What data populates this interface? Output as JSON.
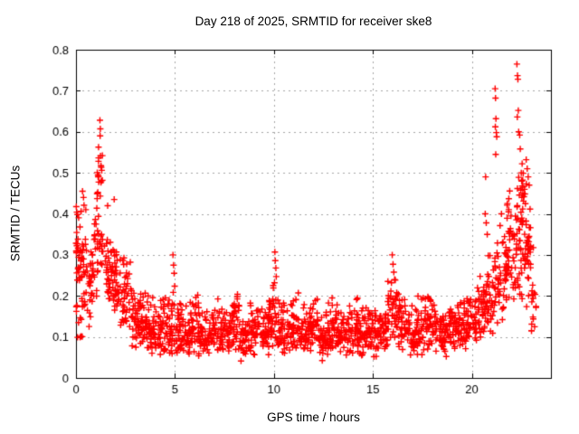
{
  "chart_data": {
    "type": "scatter",
    "title": "Day 218 of 2025, SRMTID for receiver ske8",
    "xlabel": "GPS time / hours",
    "ylabel": "SRMTID / TECUs",
    "xlim": [
      0,
      24
    ],
    "ylim": [
      0,
      0.8
    ],
    "xticks": [
      [
        0,
        "0"
      ],
      [
        5,
        "5"
      ],
      [
        10,
        "10"
      ],
      [
        15,
        "15"
      ],
      [
        20,
        "20"
      ]
    ],
    "yticks": [
      [
        0,
        "0"
      ],
      [
        0.1,
        "0.1"
      ],
      [
        0.2,
        "0.2"
      ],
      [
        0.3,
        "0.3"
      ],
      [
        0.4,
        "0.4"
      ],
      [
        0.5,
        "0.5"
      ],
      [
        0.6,
        "0.6"
      ],
      [
        0.7,
        "0.7"
      ],
      [
        0.8,
        "0.8"
      ]
    ],
    "grid": {
      "on": true,
      "style": "dashed",
      "color": "#a6a6a6"
    },
    "border_color": "#000000",
    "background": "#ffffff",
    "marker": {
      "shape": "plus",
      "color": "#ff0000",
      "size": 7,
      "stroke_width": 1.4
    },
    "legend": null,
    "seed": 218,
    "point_bins": [
      [
        0.0,
        0.25,
        30,
        0.14,
        0.33,
        0.43
      ],
      [
        0.0,
        0.35,
        10,
        0.07,
        0.12,
        0.2
      ],
      [
        0.25,
        0.55,
        28,
        0.15,
        0.28,
        0.46
      ],
      [
        0.55,
        0.9,
        30,
        0.12,
        0.22,
        0.35
      ],
      [
        0.9,
        1.15,
        22,
        0.18,
        0.32,
        0.47
      ],
      [
        1.05,
        1.35,
        20,
        0.4,
        0.51,
        0.57
      ],
      [
        1.15,
        1.45,
        12,
        0.25,
        0.33,
        0.4
      ],
      [
        1.45,
        1.8,
        30,
        0.16,
        0.26,
        0.38
      ],
      [
        1.8,
        2.25,
        40,
        0.13,
        0.22,
        0.34
      ],
      [
        2.25,
        2.75,
        40,
        0.1,
        0.17,
        0.3
      ],
      [
        2.75,
        3.25,
        45,
        0.06,
        0.13,
        0.24
      ],
      [
        3.25,
        3.75,
        45,
        0.05,
        0.105,
        0.21
      ],
      [
        3.75,
        4.25,
        45,
        0.045,
        0.1,
        0.2
      ],
      [
        4.25,
        4.75,
        45,
        0.05,
        0.11,
        0.22
      ],
      [
        4.75,
        5.25,
        45,
        0.05,
        0.11,
        0.24
      ],
      [
        5.25,
        5.75,
        40,
        0.05,
        0.1,
        0.2
      ],
      [
        5.75,
        6.25,
        40,
        0.05,
        0.12,
        0.22
      ],
      [
        6.25,
        6.75,
        40,
        0.04,
        0.09,
        0.17
      ],
      [
        6.75,
        7.25,
        40,
        0.05,
        0.11,
        0.21
      ],
      [
        7.25,
        7.75,
        40,
        0.05,
        0.1,
        0.18
      ],
      [
        7.75,
        8.25,
        40,
        0.05,
        0.12,
        0.22
      ],
      [
        8.25,
        8.75,
        40,
        0.04,
        0.09,
        0.16
      ],
      [
        8.75,
        9.25,
        40,
        0.05,
        0.11,
        0.2
      ],
      [
        9.25,
        9.75,
        40,
        0.05,
        0.1,
        0.18
      ],
      [
        9.75,
        10.25,
        40,
        0.06,
        0.13,
        0.23
      ],
      [
        10.25,
        10.75,
        40,
        0.05,
        0.11,
        0.21
      ],
      [
        10.75,
        11.25,
        40,
        0.06,
        0.12,
        0.22
      ],
      [
        11.25,
        11.75,
        40,
        0.05,
        0.1,
        0.18
      ],
      [
        11.75,
        12.25,
        40,
        0.05,
        0.11,
        0.2
      ],
      [
        12.25,
        12.75,
        40,
        0.04,
        0.09,
        0.17
      ],
      [
        12.75,
        13.25,
        40,
        0.05,
        0.11,
        0.21
      ],
      [
        13.25,
        13.75,
        40,
        0.05,
        0.1,
        0.19
      ],
      [
        13.75,
        14.25,
        40,
        0.05,
        0.11,
        0.2
      ],
      [
        14.25,
        14.75,
        40,
        0.05,
        0.1,
        0.18
      ],
      [
        14.75,
        15.25,
        40,
        0.05,
        0.11,
        0.2
      ],
      [
        15.25,
        15.75,
        40,
        0.05,
        0.11,
        0.21
      ],
      [
        15.75,
        16.25,
        40,
        0.07,
        0.14,
        0.26
      ],
      [
        16.25,
        16.75,
        40,
        0.06,
        0.12,
        0.22
      ],
      [
        16.75,
        17.25,
        40,
        0.05,
        0.1,
        0.19
      ],
      [
        17.25,
        17.75,
        40,
        0.05,
        0.11,
        0.21
      ],
      [
        17.75,
        18.25,
        40,
        0.06,
        0.12,
        0.22
      ],
      [
        18.25,
        18.75,
        40,
        0.05,
        0.1,
        0.18
      ],
      [
        18.75,
        19.25,
        40,
        0.06,
        0.11,
        0.2
      ],
      [
        19.25,
        19.75,
        40,
        0.06,
        0.12,
        0.21
      ],
      [
        19.75,
        20.25,
        40,
        0.07,
        0.13,
        0.23
      ],
      [
        20.25,
        20.75,
        40,
        0.08,
        0.15,
        0.28
      ],
      [
        20.75,
        21.25,
        40,
        0.1,
        0.18,
        0.35
      ],
      [
        21.25,
        21.75,
        40,
        0.12,
        0.22,
        0.42
      ],
      [
        21.75,
        22.25,
        42,
        0.14,
        0.27,
        0.48
      ],
      [
        22.25,
        22.65,
        45,
        0.18,
        0.35,
        0.55
      ],
      [
        22.65,
        23.0,
        40,
        0.15,
        0.28,
        0.5
      ],
      [
        23.0,
        23.25,
        16,
        0.1,
        0.2,
        0.38
      ]
    ],
    "outlier_points": [
      [
        0.33,
        0.455
      ],
      [
        0.38,
        0.44
      ],
      [
        1.21,
        0.628
      ],
      [
        1.23,
        0.607
      ],
      [
        1.22,
        0.59
      ],
      [
        1.6,
        0.42
      ],
      [
        1.93,
        0.435
      ],
      [
        4.9,
        0.3
      ],
      [
        4.93,
        0.275
      ],
      [
        4.96,
        0.255
      ],
      [
        10.05,
        0.307
      ],
      [
        10.07,
        0.286
      ],
      [
        10.1,
        0.268
      ],
      [
        10.12,
        0.247
      ],
      [
        10.03,
        0.232
      ],
      [
        15.98,
        0.3
      ],
      [
        16.02,
        0.277
      ],
      [
        16.06,
        0.258
      ],
      [
        16.1,
        0.24
      ],
      [
        15.94,
        0.232
      ],
      [
        20.68,
        0.4
      ],
      [
        20.73,
        0.378
      ],
      [
        20.78,
        0.35
      ],
      [
        20.7,
        0.49
      ],
      [
        21.18,
        0.705
      ],
      [
        21.2,
        0.682
      ],
      [
        21.22,
        0.632
      ],
      [
        21.19,
        0.612
      ],
      [
        21.24,
        0.598
      ],
      [
        21.26,
        0.588
      ],
      [
        21.21,
        0.545
      ],
      [
        21.5,
        0.4
      ],
      [
        21.8,
        0.425
      ],
      [
        21.86,
        0.405
      ],
      [
        22.28,
        0.765
      ],
      [
        22.31,
        0.737
      ],
      [
        22.33,
        0.728
      ],
      [
        22.35,
        0.652
      ],
      [
        22.3,
        0.636
      ],
      [
        22.37,
        0.6
      ],
      [
        22.42,
        0.592
      ],
      [
        22.45,
        0.558
      ],
      [
        22.5,
        0.5
      ],
      [
        22.52,
        0.48
      ],
      [
        22.55,
        0.468
      ],
      [
        22.48,
        0.458
      ],
      [
        22.58,
        0.45
      ],
      [
        22.53,
        0.44
      ],
      [
        22.75,
        0.532
      ],
      [
        22.8,
        0.51
      ],
      [
        22.85,
        0.49
      ],
      [
        22.9,
        0.47
      ]
    ]
  }
}
